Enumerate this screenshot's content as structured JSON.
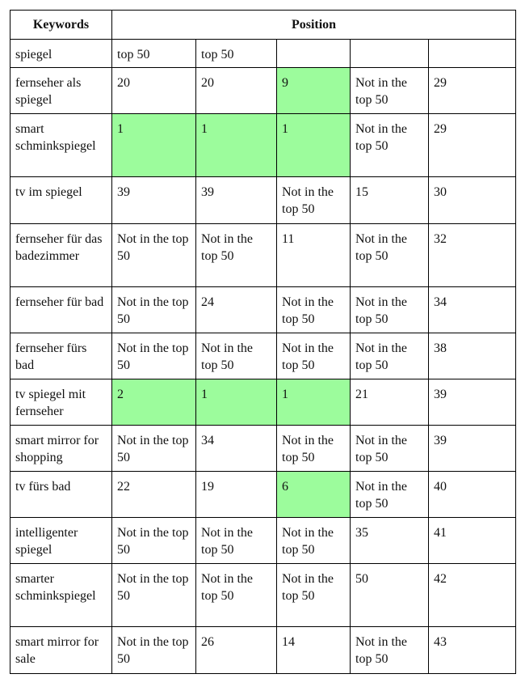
{
  "header": {
    "keywords": "Keywords",
    "position": "Position"
  },
  "highlight_color": "#9cfc9c",
  "rows": [
    {
      "keyword": "spiegel",
      "positions": [
        "top 50",
        "top 50",
        "",
        "",
        ""
      ],
      "highlighted": []
    },
    {
      "keyword": "fernseher als spiegel",
      "positions": [
        "20",
        "20",
        "9",
        "Not in the top 50",
        "29"
      ],
      "highlighted": [
        2
      ]
    },
    {
      "keyword": "smart schminkspiegel",
      "positions": [
        "1",
        "1",
        "1",
        "Not in the top 50",
        "29"
      ],
      "highlighted": [
        0,
        1,
        2
      ]
    },
    {
      "keyword": "tv im spiegel",
      "positions": [
        "39",
        "39",
        "Not in the top 50",
        "15",
        "30"
      ],
      "highlighted": []
    },
    {
      "keyword": "fernseher für das badezimmer",
      "positions": [
        "Not in the top 50",
        "Not in the top 50",
        "11",
        "Not in the top 50",
        "32"
      ],
      "highlighted": []
    },
    {
      "keyword": "fernseher für bad",
      "positions": [
        "Not in the top 50",
        "24",
        "Not in the top 50",
        "Not in the top 50",
        "34"
      ],
      "highlighted": []
    },
    {
      "keyword": "fernseher fürs bad",
      "positions": [
        "Not in the top 50",
        "Not in the top 50",
        "Not in the top 50",
        "Not in the top 50",
        "38"
      ],
      "highlighted": []
    },
    {
      "keyword": "tv spiegel mit fernseher",
      "positions": [
        "2",
        "1",
        "1",
        "21",
        "39"
      ],
      "highlighted": [
        0,
        1,
        2
      ]
    },
    {
      "keyword": "smart mirror for shopping",
      "positions": [
        "Not in the top 50",
        "34",
        "Not in the top 50",
        "Not in the top 50",
        "39"
      ],
      "highlighted": []
    },
    {
      "keyword": "tv fürs bad",
      "positions": [
        "22",
        "19",
        "6",
        "Not in the top 50",
        "40"
      ],
      "highlighted": [
        2
      ]
    },
    {
      "keyword": "intelligenter spiegel",
      "positions": [
        "Not in the top 50",
        "Not in the top 50",
        "Not in the top 50",
        "35",
        "41"
      ],
      "highlighted": []
    },
    {
      "keyword": "smarter schminkspiegel",
      "positions": [
        "Not in the top 50",
        "Not in the top 50",
        "Not in the top 50",
        "50",
        "42"
      ],
      "highlighted": []
    },
    {
      "keyword": "smart mirror for sale",
      "positions": [
        "Not in the top 50",
        "26",
        "14",
        "Not in the top 50",
        "43"
      ],
      "highlighted": []
    }
  ]
}
